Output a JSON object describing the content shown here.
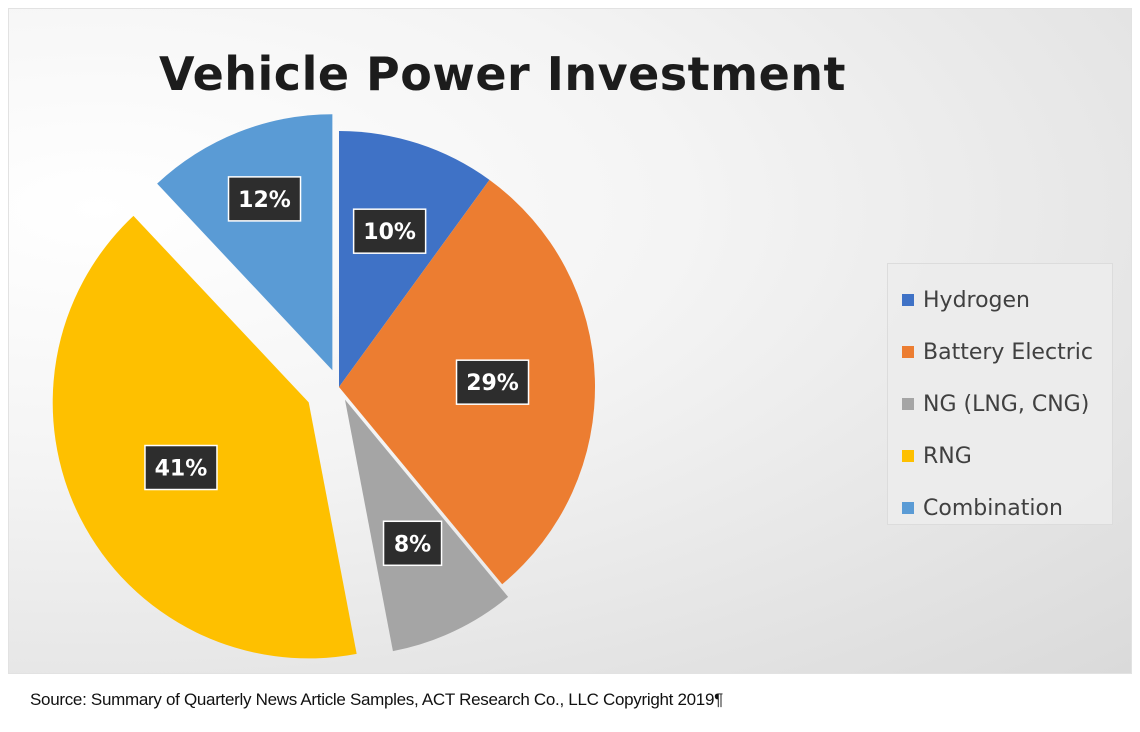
{
  "chart_data": {
    "type": "pie",
    "title": "Vehicle Power Investment",
    "categories": [
      "Hydrogen",
      "Battery Electric",
      "NG (LNG, CNG)",
      "RNG",
      "Combination"
    ],
    "values": [
      10,
      29,
      8,
      41,
      12
    ],
    "data_labels": [
      "10%",
      "29%",
      "8%",
      "41%",
      "12%"
    ],
    "colors": [
      "#3f72c6",
      "#ec7d31",
      "#a5a5a5",
      "#fec000",
      "#5a9bd5"
    ],
    "exploded": true,
    "legend_position": "right"
  },
  "source_note": "Source: Summary of Quarterly News Article Samples, ACT Research Co., LLC Copyright 2019¶"
}
